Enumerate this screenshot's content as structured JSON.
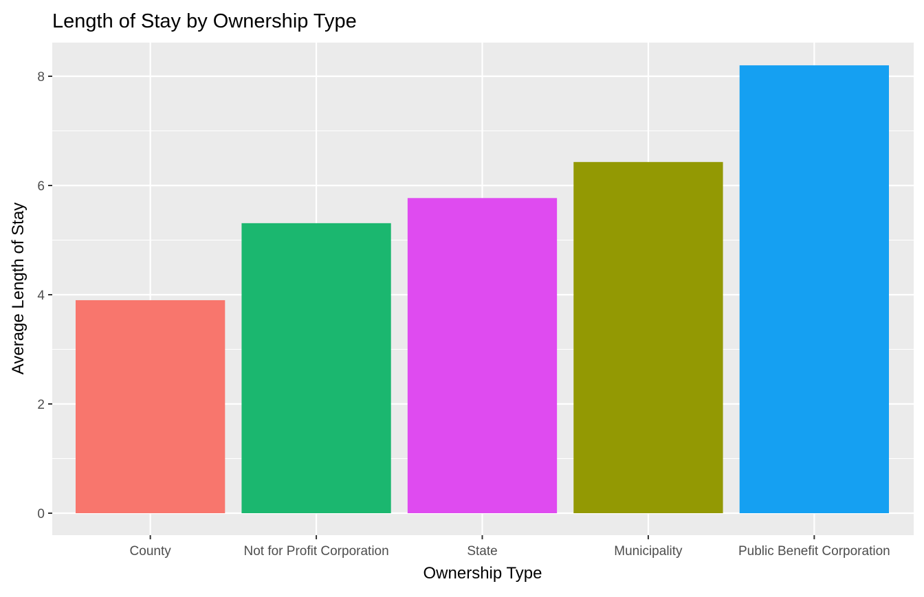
{
  "chart_data": {
    "type": "bar",
    "title": "Length of Stay by Ownership Type",
    "xlabel": "Ownership Type",
    "ylabel": "Average Length of Stay",
    "categories": [
      "County",
      "Not for Profit Corporation",
      "State",
      "Municipality",
      "Public Benefit Corporation"
    ],
    "values": [
      3.9,
      5.31,
      5.77,
      6.43,
      8.2
    ],
    "colors": [
      "#F8766D",
      "#1BB76F",
      "#DF4BF0",
      "#939903",
      "#15A0F2"
    ],
    "ylim": [
      0,
      8.6
    ],
    "yticks": [
      0,
      2,
      4,
      6,
      8
    ],
    "grid": true,
    "legend": "none",
    "panel_background": "#EBEBEB",
    "grid_color": "#FFFFFF"
  }
}
